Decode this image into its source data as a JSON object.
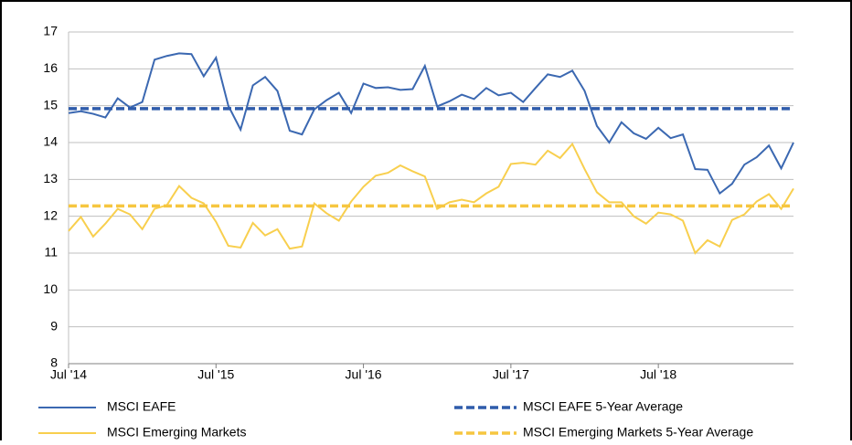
{
  "chart_data": {
    "type": "line",
    "categories": [
      "Jul '14",
      null,
      null,
      null,
      null,
      null,
      null,
      null,
      null,
      null,
      null,
      null,
      "Jul '15",
      null,
      null,
      null,
      null,
      null,
      null,
      null,
      null,
      null,
      null,
      null,
      "Jul '16",
      null,
      null,
      null,
      null,
      null,
      null,
      null,
      null,
      null,
      null,
      null,
      "Jul '17",
      null,
      null,
      null,
      null,
      null,
      null,
      null,
      null,
      null,
      null,
      null,
      "Jul '18",
      null,
      null,
      null,
      null,
      null,
      null,
      null,
      null,
      null,
      null,
      null
    ],
    "series": [
      {
        "name": "MSCI EAFE",
        "color": "#3b68b1",
        "values": [
          14.8,
          14.85,
          14.78,
          14.68,
          15.2,
          14.95,
          15.1,
          16.25,
          16.35,
          16.42,
          16.4,
          15.8,
          16.3,
          15.0,
          14.35,
          15.55,
          15.78,
          15.4,
          14.32,
          14.22,
          14.9,
          15.15,
          15.35,
          14.8,
          15.6,
          15.48,
          15.5,
          15.43,
          15.45,
          16.08,
          14.98,
          15.12,
          15.3,
          15.18,
          15.48,
          15.28,
          15.35,
          15.1,
          15.48,
          15.85,
          15.78,
          15.95,
          15.4,
          14.45,
          14.0,
          14.55,
          14.25,
          14.1,
          14.4,
          14.12,
          14.22,
          13.28,
          13.26,
          12.62,
          12.88,
          13.4,
          13.6,
          13.92,
          13.3,
          14.0
        ]
      },
      {
        "name": "MSCI Emerging Markets",
        "color": "#f8cf4e",
        "values": [
          11.6,
          11.98,
          11.45,
          11.8,
          12.2,
          12.05,
          11.65,
          12.2,
          12.3,
          12.82,
          12.5,
          12.35,
          11.85,
          11.2,
          11.15,
          11.82,
          11.48,
          11.65,
          11.12,
          11.18,
          12.35,
          12.08,
          11.88,
          12.4,
          12.8,
          13.1,
          13.18,
          13.38,
          13.22,
          13.08,
          12.2,
          12.38,
          12.45,
          12.38,
          12.62,
          12.8,
          13.42,
          13.45,
          13.4,
          13.78,
          13.58,
          13.96,
          13.28,
          12.65,
          12.38,
          12.38,
          12.0,
          11.8,
          12.1,
          12.05,
          11.88,
          11.0,
          11.35,
          11.18,
          11.9,
          12.05,
          12.4,
          12.6,
          12.2,
          12.75
        ]
      }
    ],
    "average_lines": [
      {
        "name": "MSCI EAFE 5-Year Average",
        "color": "#2f5cab",
        "value": 14.92
      },
      {
        "name": "MSCI Emerging Markets 5-Year Average",
        "color": "#f6c640",
        "value": 12.28
      }
    ],
    "ylim": [
      8,
      17
    ],
    "yticks": [
      8,
      9,
      10,
      11,
      12,
      13,
      14,
      15,
      16,
      17
    ],
    "grid": true
  }
}
